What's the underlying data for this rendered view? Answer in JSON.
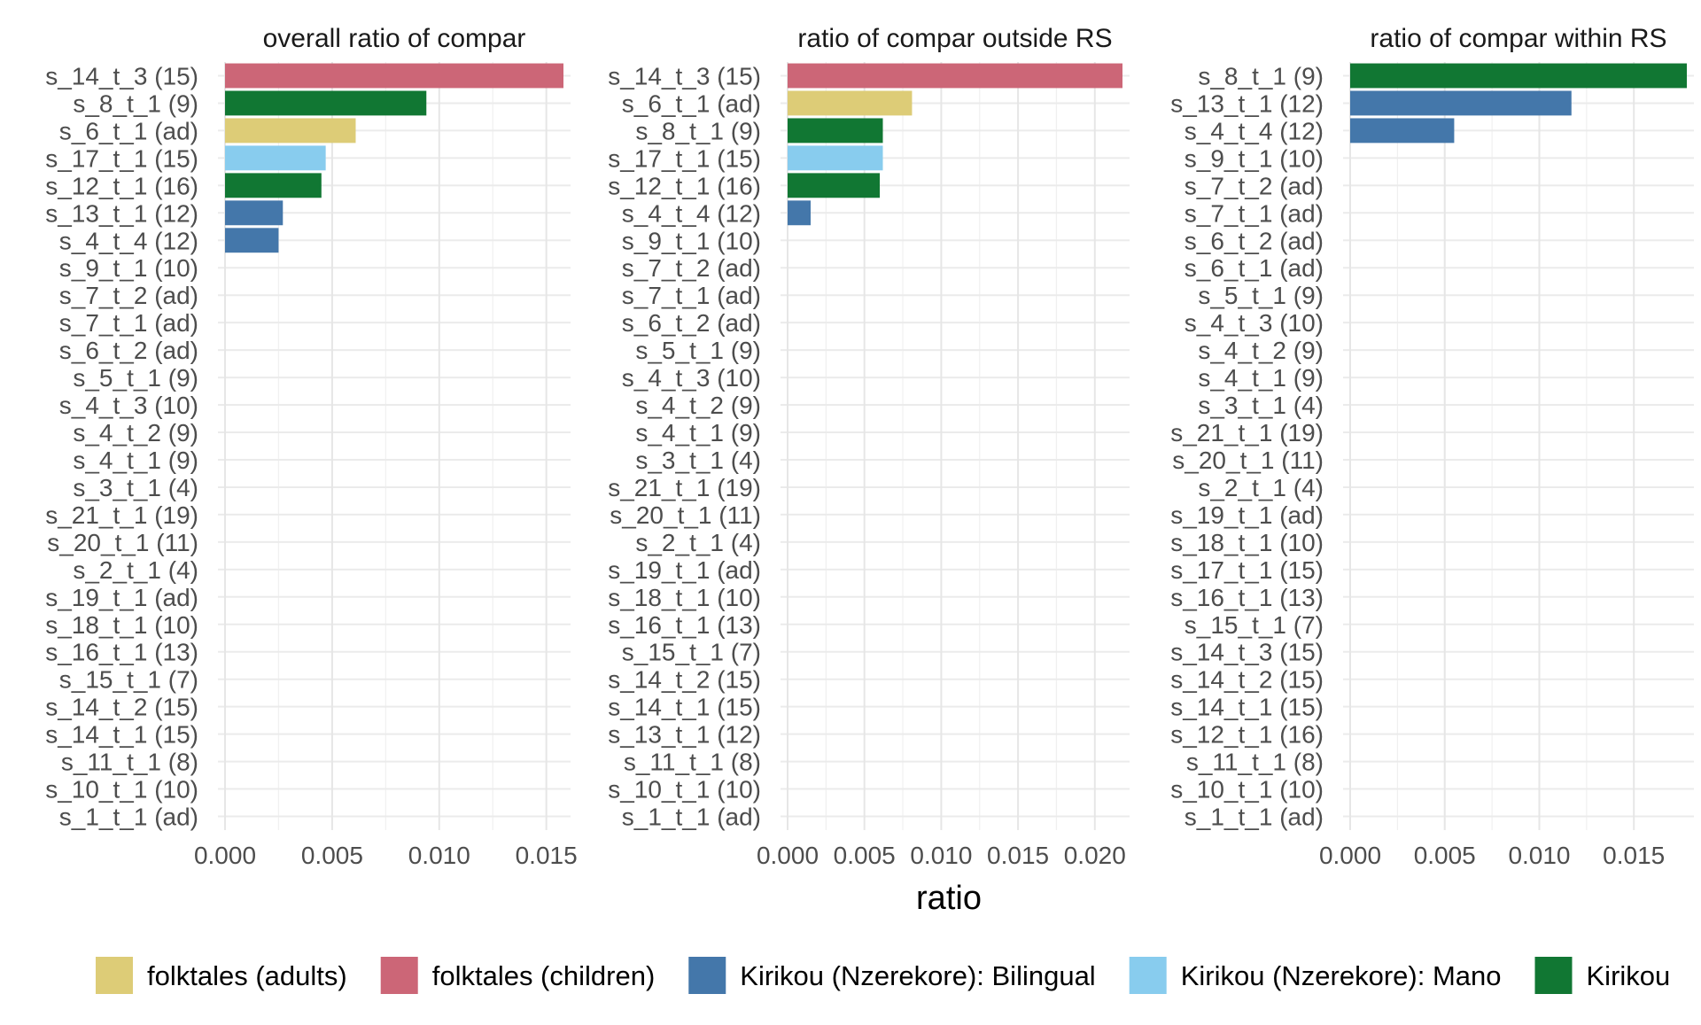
{
  "chart_data": {
    "type": "bar",
    "orientation": "horizontal",
    "xlabel": "ratio",
    "grid": true,
    "legend_position": "bottom",
    "legend": [
      {
        "label": "folktales (adults)",
        "color": "#DDCC77"
      },
      {
        "label": "folktales (children)",
        "color": "#CC6677"
      },
      {
        "label": "Kirikou (Nzerekore): Bilingual",
        "color": "#4477AA"
      },
      {
        "label": "Kirikou (Nzerekore): Mano",
        "color": "#88CCEE"
      },
      {
        "label": "Kirikou",
        "color": "#117733"
      }
    ],
    "panels": [
      {
        "title": "overall ratio of compar",
        "xlim": [
          0,
          0.0158
        ],
        "ticks": [
          0,
          0.005,
          0.01,
          0.015
        ],
        "tick_labels": [
          "0.000",
          "0.005",
          "0.010",
          "0.015"
        ],
        "categories": [
          "s_14_t_3 (15)",
          "s_8_t_1 (9)",
          "s_6_t_1 (ad)",
          "s_17_t_1 (15)",
          "s_12_t_1 (16)",
          "s_13_t_1 (12)",
          "s_4_t_4 (12)",
          "s_9_t_1 (10)",
          "s_7_t_2 (ad)",
          "s_7_t_1 (ad)",
          "s_6_t_2 (ad)",
          "s_5_t_1 (9)",
          "s_4_t_3 (10)",
          "s_4_t_2 (9)",
          "s_4_t_1 (9)",
          "s_3_t_1 (4)",
          "s_21_t_1 (19)",
          "s_20_t_1 (11)",
          "s_2_t_1 (4)",
          "s_19_t_1 (ad)",
          "s_18_t_1 (10)",
          "s_16_t_1 (13)",
          "s_15_t_1 (7)",
          "s_14_t_2 (15)",
          "s_14_t_1 (15)",
          "s_11_t_1 (8)",
          "s_10_t_1 (10)",
          "s_1_t_1 (ad)"
        ],
        "values": [
          0.0158,
          0.0094,
          0.0061,
          0.0047,
          0.0045,
          0.0027,
          0.0025,
          0,
          0,
          0,
          0,
          0,
          0,
          0,
          0,
          0,
          0,
          0,
          0,
          0,
          0,
          0,
          0,
          0,
          0,
          0,
          0,
          0
        ],
        "colors": [
          "#CC6677",
          "#117733",
          "#DDCC77",
          "#88CCEE",
          "#117733",
          "#4477AA",
          "#4477AA",
          "",
          "",
          "",
          "",
          "",
          "",
          "",
          "",
          "",
          "",
          "",
          "",
          "",
          "",
          "",
          "",
          "",
          "",
          "",
          "",
          ""
        ]
      },
      {
        "title": "ratio of compar outside RS",
        "xlim": [
          0,
          0.0218
        ],
        "ticks": [
          0,
          0.005,
          0.01,
          0.015,
          0.02
        ],
        "tick_labels": [
          "0.000",
          "0.005",
          "0.010",
          "0.015",
          "0.020"
        ],
        "categories": [
          "s_14_t_3 (15)",
          "s_6_t_1 (ad)",
          "s_8_t_1 (9)",
          "s_17_t_1 (15)",
          "s_12_t_1 (16)",
          "s_4_t_4 (12)",
          "s_9_t_1 (10)",
          "s_7_t_2 (ad)",
          "s_7_t_1 (ad)",
          "s_6_t_2 (ad)",
          "s_5_t_1 (9)",
          "s_4_t_3 (10)",
          "s_4_t_2 (9)",
          "s_4_t_1 (9)",
          "s_3_t_1 (4)",
          "s_21_t_1 (19)",
          "s_20_t_1 (11)",
          "s_2_t_1 (4)",
          "s_19_t_1 (ad)",
          "s_18_t_1 (10)",
          "s_16_t_1 (13)",
          "s_15_t_1 (7)",
          "s_14_t_2 (15)",
          "s_14_t_1 (15)",
          "s_13_t_1 (12)",
          "s_11_t_1 (8)",
          "s_10_t_1 (10)",
          "s_1_t_1 (ad)"
        ],
        "values": [
          0.0218,
          0.0081,
          0.0062,
          0.0062,
          0.006,
          0.0015,
          0,
          0,
          0,
          0,
          0,
          0,
          0,
          0,
          0,
          0,
          0,
          0,
          0,
          0,
          0,
          0,
          0,
          0,
          0,
          0,
          0,
          0
        ],
        "colors": [
          "#CC6677",
          "#DDCC77",
          "#117733",
          "#88CCEE",
          "#117733",
          "#4477AA",
          "",
          "",
          "",
          "",
          "",
          "",
          "",
          "",
          "",
          "",
          "",
          "",
          "",
          "",
          "",
          "",
          "",
          "",
          "",
          "",
          "",
          ""
        ]
      },
      {
        "title": "ratio of compar within RS",
        "xlim": [
          0,
          0.0178
        ],
        "ticks": [
          0,
          0.005,
          0.01,
          0.015
        ],
        "tick_labels": [
          "0.000",
          "0.005",
          "0.010",
          "0.015"
        ],
        "categories": [
          "s_8_t_1 (9)",
          "s_13_t_1 (12)",
          "s_4_t_4 (12)",
          "s_9_t_1 (10)",
          "s_7_t_2 (ad)",
          "s_7_t_1 (ad)",
          "s_6_t_2 (ad)",
          "s_6_t_1 (ad)",
          "s_5_t_1 (9)",
          "s_4_t_3 (10)",
          "s_4_t_2 (9)",
          "s_4_t_1 (9)",
          "s_3_t_1 (4)",
          "s_21_t_1 (19)",
          "s_20_t_1 (11)",
          "s_2_t_1 (4)",
          "s_19_t_1 (ad)",
          "s_18_t_1 (10)",
          "s_17_t_1 (15)",
          "s_16_t_1 (13)",
          "s_15_t_1 (7)",
          "s_14_t_3 (15)",
          "s_14_t_2 (15)",
          "s_14_t_1 (15)",
          "s_12_t_1 (16)",
          "s_11_t_1 (8)",
          "s_10_t_1 (10)",
          "s_1_t_1 (ad)"
        ],
        "values": [
          0.0178,
          0.0117,
          0.0055,
          0,
          0,
          0,
          0,
          0,
          0,
          0,
          0,
          0,
          0,
          0,
          0,
          0,
          0,
          0,
          0,
          0,
          0,
          0,
          0,
          0,
          0,
          0,
          0,
          0
        ],
        "colors": [
          "#117733",
          "#4477AA",
          "#4477AA",
          "",
          "",
          "",
          "",
          "",
          "",
          "",
          "",
          "",
          "",
          "",
          "",
          "",
          "",
          "",
          "",
          "",
          "",
          "",
          "",
          "",
          "",
          "",
          "",
          ""
        ]
      }
    ]
  }
}
